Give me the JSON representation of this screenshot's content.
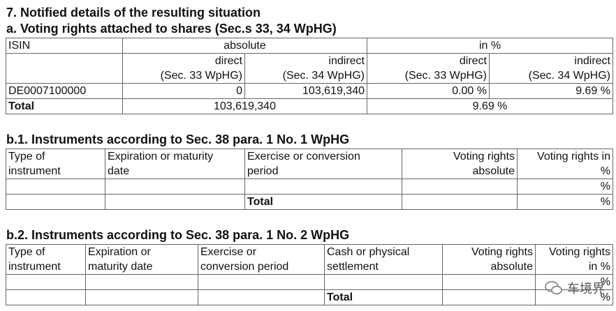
{
  "heading": "7. Notified details of the resulting situation",
  "section_a": {
    "title": "a. Voting rights attached to shares (Sec.s 33, 34 WpHG)",
    "group_header": [
      "ISIN",
      "absolute",
      "in %"
    ],
    "sub_header": [
      [
        "direct",
        "(Sec. 33 WpHG)"
      ],
      [
        "indirect",
        "(Sec. 34 WpHG)"
      ],
      [
        "direct",
        "(Sec. 33 WpHG)"
      ],
      [
        "indirect",
        "(Sec. 34 WpHG)"
      ]
    ],
    "rows": [
      [
        "DE0007100000",
        "0",
        "103,619,340",
        "0.00 %",
        "9.69 %"
      ]
    ],
    "total": [
      "Total",
      "103,619,340",
      "9.69 %"
    ]
  },
  "section_b1": {
    "title": "b.1. Instruments according to Sec. 38 para. 1 No. 1 WpHG",
    "header": [
      [
        "Type of",
        "instrument"
      ],
      [
        "Expiration or maturity",
        "date"
      ],
      [
        "Exercise or conversion",
        "period"
      ],
      [
        "Voting rights",
        "absolute"
      ],
      [
        "Voting rights in",
        "%"
      ]
    ],
    "rows": [
      [
        null,
        null,
        null,
        null,
        "%"
      ],
      [
        null,
        null,
        "Total",
        null,
        "%"
      ]
    ]
  },
  "section_b2": {
    "title": "b.2. Instruments according to Sec. 38 para. 1 No. 2 WpHG",
    "header": [
      [
        "Type of",
        "instrument"
      ],
      [
        "Expiration or",
        "maturity date"
      ],
      [
        "Exercise or",
        "conversion period"
      ],
      [
        "Cash or physical",
        "settlement"
      ],
      [
        "Voting rights",
        "absolute"
      ],
      [
        "Voting rights",
        "in %"
      ]
    ],
    "rows": [
      [
        null,
        null,
        null,
        null,
        null,
        "%"
      ],
      [
        null,
        null,
        null,
        "Total",
        null,
        "%"
      ]
    ]
  },
  "watermark": "车境界"
}
